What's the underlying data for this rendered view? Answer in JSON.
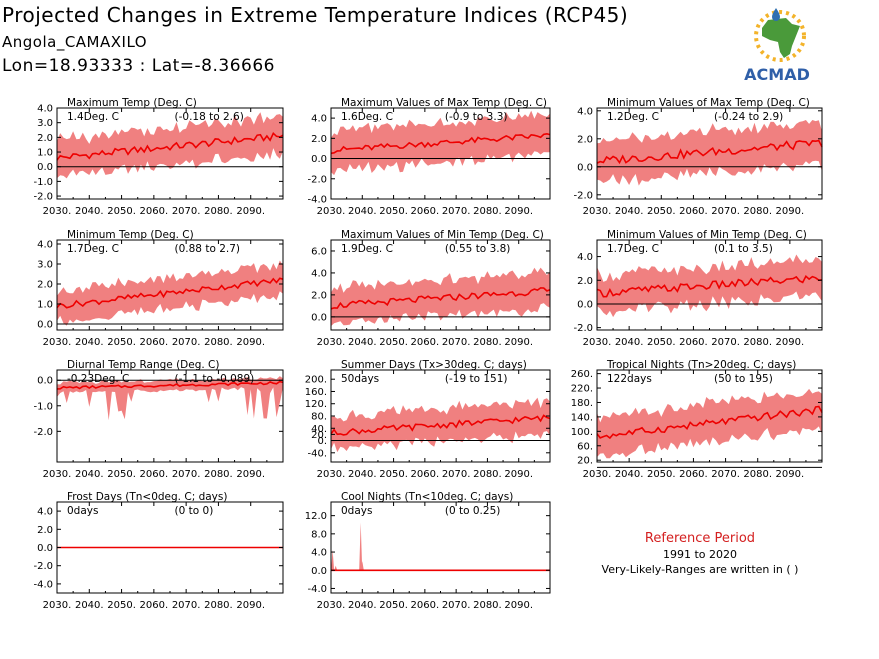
{
  "header": {
    "title": "Projected Changes in Extreme Temperature Indices (RCP45)",
    "location": "Angola_CAMAXILO",
    "coords": "Lon=18.93333 : Lat=-8.36666"
  },
  "logo": {
    "text": "ACMAD",
    "icon": "africa-map-logo"
  },
  "reference": {
    "label": "Reference Period",
    "years": "1991 to 2020",
    "note": "Very-Likely-Ranges are written in ( )"
  },
  "colors": {
    "band": "#f08080",
    "line": "#ee0000",
    "zero": "#000000"
  },
  "chart_data": [
    {
      "type": "area",
      "title": "Maximum Temp (Deg. C)",
      "value_label": "1.4Deg. C",
      "range_label": "(-0.18 to 2.6)",
      "x": [
        2030,
        2100
      ],
      "xticks": [
        "2030.",
        "2040.",
        "2050.",
        "2060.",
        "2070.",
        "2080.",
        "2090."
      ],
      "ylim": [
        -2.2,
        4.0
      ],
      "yticks": [
        "-2.0",
        "-1.0",
        "0.0",
        "1.0",
        "2.0",
        "3.0",
        "4.0"
      ],
      "trend": [
        0.6,
        2.1
      ],
      "amp": 1.3,
      "wiggle": 0.25
    },
    {
      "type": "area",
      "title": "Maximum Values of Max Temp (Deg. C)",
      "value_label": "1.6Deg. C",
      "range_label": "(-0.9 to 3.3)",
      "x": [
        2030,
        2100
      ],
      "xticks": [
        "2030.",
        "2040.",
        "2050.",
        "2060.",
        "2070.",
        "2080.",
        "2090."
      ],
      "ylim": [
        -4.0,
        5.0
      ],
      "yticks": [
        "-4.0",
        "-2.0",
        "0.0",
        "2.0",
        "4.0"
      ],
      "trend": [
        0.8,
        2.3
      ],
      "amp": 2.0,
      "wiggle": 0.3
    },
    {
      "type": "area",
      "title": "Minimum Values of Max Temp (Deg. C)",
      "value_label": "1.2Deg. C",
      "range_label": "(-0.24 to 2.9)",
      "x": [
        2030,
        2100
      ],
      "xticks": [
        "2030.",
        "2040.",
        "2050.",
        "2060.",
        "2070.",
        "2080.",
        "2090."
      ],
      "ylim": [
        -2.3,
        4.2
      ],
      "yticks": [
        "-2.0",
        "0.0",
        "2.0",
        "4.0"
      ],
      "trend": [
        0.4,
        1.7
      ],
      "amp": 1.5,
      "wiggle": 0.3
    },
    {
      "type": "area",
      "title": "Minimum Temp (Deg. C)",
      "value_label": "1.7Deg. C",
      "range_label": "(0.88 to 2.7)",
      "x": [
        2030,
        2100
      ],
      "xticks": [
        "2030.",
        "2040.",
        "2050.",
        "2060.",
        "2070.",
        "2080.",
        "2090."
      ],
      "ylim": [
        -0.3,
        4.2
      ],
      "yticks": [
        "0.0",
        "1.0",
        "2.0",
        "3.0",
        "4.0"
      ],
      "trend": [
        0.9,
        2.2
      ],
      "amp": 0.8,
      "wiggle": 0.15
    },
    {
      "type": "area",
      "title": "Maximum Values of Min Temp (Deg. C)",
      "value_label": "1.9Deg. C",
      "range_label": "(0.55 to 3.8)",
      "x": [
        2030,
        2100
      ],
      "xticks": [
        "2030.",
        "2040.",
        "2050.",
        "2060.",
        "2070.",
        "2080.",
        "2090."
      ],
      "ylim": [
        -1.2,
        7.0
      ],
      "yticks": [
        "0.0",
        "2.0",
        "4.0",
        "6.0"
      ],
      "trend": [
        1.0,
        2.4
      ],
      "amp": 1.7,
      "wiggle": 0.3
    },
    {
      "type": "area",
      "title": "Minimum Values of Min Temp (Deg. C)",
      "value_label": "1.7Deg. C",
      "range_label": "(0.1 to 3.5)",
      "x": [
        2030,
        2100
      ],
      "xticks": [
        "2030.",
        "2040.",
        "2050.",
        "2060.",
        "2070.",
        "2080.",
        "2090."
      ],
      "ylim": [
        -2.2,
        5.4
      ],
      "yticks": [
        "-2.0",
        "0.0",
        "2.0",
        "4.0"
      ],
      "trend": [
        0.9,
        2.2
      ],
      "amp": 1.6,
      "wiggle": 0.35
    },
    {
      "type": "area",
      "title": "Diurnal Temp Range (Deg. C)",
      "value_label": "-0.23Deg. C",
      "range_label": "(-1.1 to -0.089)",
      "x": [
        2030,
        2100
      ],
      "xticks": [
        "2030.",
        "2040.",
        "2050.",
        "2060.",
        "2070.",
        "2080.",
        "2090."
      ],
      "ylim": [
        -3.2,
        0.4
      ],
      "yticks": [
        "-2.0",
        "-1.0",
        "0.0"
      ],
      "trend": [
        -0.3,
        -0.1
      ],
      "amp": 0.2,
      "wiggle": 0.05,
      "dips": true
    },
    {
      "type": "area",
      "title": "Summer Days (Tx>30deg. C; days)",
      "value_label": "50days",
      "range_label": "(-19 to 151)",
      "x": [
        2030,
        2100
      ],
      "xticks": [
        "2030.",
        "2040.",
        "2050.",
        "2060.",
        "2070.",
        "2080.",
        "2090."
      ],
      "ylim": [
        -70,
        230
      ],
      "yticks": [
        "-40.",
        "0.",
        "20.",
        "40.",
        "80.",
        "120.",
        "160.",
        "200."
      ],
      "trend": [
        25,
        75
      ],
      "amp": 55,
      "wiggle": 10
    },
    {
      "type": "area",
      "title": "Tropical Nights (Tn>20deg. C; days)",
      "value_label": "122days",
      "range_label": "(50 to 195)",
      "x": [
        2030,
        2100
      ],
      "xticks": [
        "2030.",
        "2040.",
        "2050.",
        "2060.",
        "2070.",
        "2080.",
        "2090."
      ],
      "ylim": [
        15,
        270
      ],
      "yticks": [
        "20.",
        "60.",
        "100.",
        "140.",
        "180.",
        "220.",
        "260."
      ],
      "trend": [
        85,
        160
      ],
      "amp": 55,
      "wiggle": 10
    },
    {
      "type": "area",
      "title": "Frost Days (Tn<0deg. C; days)",
      "value_label": "0days",
      "range_label": "(0 to 0)",
      "x": [
        2030,
        2100
      ],
      "xticks": [
        "2030.",
        "2040.",
        "2050.",
        "2060.",
        "2070.",
        "2080.",
        "2090."
      ],
      "ylim": [
        -5.0,
        5.0
      ],
      "yticks": [
        "-4.0",
        "-2.0",
        "0.0",
        "2.0",
        "4.0"
      ],
      "trend": [
        0,
        0
      ],
      "amp": 0,
      "wiggle": 0
    },
    {
      "type": "area",
      "title": "Cool Nights (Tn<10deg. C; days)",
      "value_label": "0days",
      "range_label": "(0 to 0.25)",
      "x": [
        2030,
        2100
      ],
      "xticks": [
        "2030.",
        "2040.",
        "2050.",
        "2060.",
        "2070.",
        "2080.",
        "2090."
      ],
      "ylim": [
        -5.0,
        15.0
      ],
      "yticks": [
        "-4.0",
        "0.0",
        "4.0",
        "8.0",
        "12.0"
      ],
      "trend": [
        0,
        0
      ],
      "amp": 0,
      "wiggle": 0,
      "spikes": [
        [
          2030.5,
          4.5
        ],
        [
          2031.5,
          1.0
        ],
        [
          2039.5,
          10.5
        ],
        [
          2040,
          2.0
        ]
      ]
    }
  ]
}
